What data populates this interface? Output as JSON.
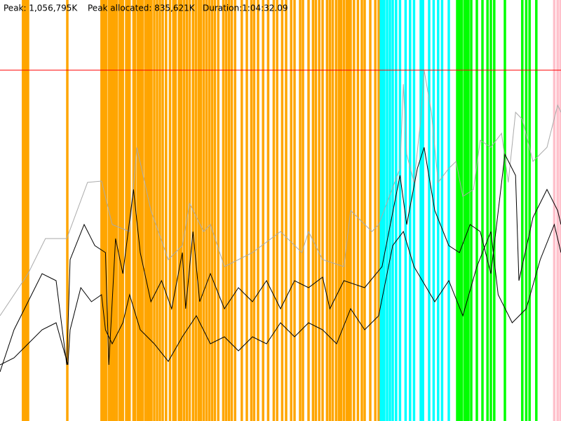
{
  "chart_data": {
    "type": "line",
    "labels": [
      "Peak: 1,056,795K",
      "Peak allocated: 835,621K",
      "Duration:1:04:32.09"
    ],
    "xlim": [
      0,
      100
    ],
    "ylim": [
      0,
      120
    ],
    "hline": 100,
    "hline_color": "#ff0000",
    "events": [
      {
        "color": "#ffa500",
        "x": [
          4.1,
          4.5,
          4.8,
          5,
          12,
          18.1,
          18.5,
          18.9,
          19.4,
          19.8,
          20,
          20.4,
          20.8,
          21.3,
          21.5,
          21.9,
          22.5,
          22.9,
          23.1,
          23.8,
          24.1,
          24.6,
          25,
          25.4,
          25.9,
          26.3,
          26.6,
          27,
          27.5,
          28,
          28.5,
          29,
          29.6,
          30.3,
          30.9,
          31.3,
          31.9,
          32.3,
          32.8,
          33.3,
          33.8,
          34.4,
          34.9,
          35.4,
          35.8,
          36.3,
          36.8,
          37.3,
          37.8,
          38.3,
          38.9,
          39.8,
          40.3,
          40.8,
          41.3,
          41.9,
          43.1,
          44,
          44.8,
          45.3,
          46,
          46.9,
          47.8,
          48.8,
          49.4,
          50.3,
          51,
          51.9,
          52.5,
          53.5,
          54,
          55,
          55.8,
          56.3,
          56.9,
          57.5,
          58.3,
          58.8,
          59.3,
          59.9,
          60.4,
          60.8,
          61.3,
          61.8,
          62.1,
          62.5,
          63.1,
          63.8,
          64.5,
          65,
          66,
          66.9,
          67.5
        ]
      },
      {
        "color": "#00ffff",
        "x": [
          67.9,
          68.3,
          68.5,
          69,
          69.5,
          70,
          70.6,
          71.3,
          72.3,
          73.1,
          73.8,
          75,
          75.4,
          76.5,
          77.3,
          78.1,
          78.8,
          80
        ]
      },
      {
        "color": "#00ff00",
        "x": [
          81.5,
          81.9,
          82.3,
          82.8,
          83.1,
          83.5,
          84,
          85,
          86,
          86.9,
          87.5,
          88.1,
          90,
          93.1,
          93.8,
          94.4,
          95.6
        ]
      },
      {
        "color": "#ffc0cb",
        "x": [
          98.8,
          99.4,
          99.9
        ]
      }
    ],
    "series": [
      {
        "color": "#aaaaaa",
        "x": [
          0,
          5,
          8.1,
          11.9,
          15.6,
          18.1,
          20,
          23.1,
          24.4,
          26.9,
          30,
          32.5,
          33.8,
          36.3,
          37.5,
          40,
          45,
          50,
          53.8,
          55,
          57.5,
          61.3,
          62.5,
          66.3,
          67.5,
          71.3,
          71.9,
          72.5,
          73.8,
          75,
          75.6,
          76.9,
          78.1,
          80,
          81.3,
          82.5,
          84.4,
          85.6,
          87.5,
          89.4,
          90.6,
          91.9,
          93.1,
          95,
          97.5,
          99.4,
          100
        ],
        "values": [
          30,
          42,
          52,
          52,
          68,
          68.4,
          56,
          54,
          78,
          60,
          46,
          50,
          62,
          54,
          56,
          44,
          48,
          54,
          48,
          54,
          46,
          44,
          60,
          54,
          56,
          72,
          96,
          76,
          68,
          86,
          100,
          88,
          68,
          72,
          74,
          64,
          66,
          80,
          78,
          82,
          68,
          88,
          86,
          74,
          78,
          90,
          88
        ]
      },
      {
        "color": "#000000",
        "x": [
          0,
          2.5,
          5,
          7.5,
          10,
          11.9,
          12.5,
          15,
          16.9,
          18.8,
          19.4,
          20.6,
          21.9,
          23.8,
          25,
          26.9,
          28.8,
          30.6,
          32.5,
          33.1,
          34.4,
          35.6,
          37.5,
          40,
          42.5,
          45,
          47.5,
          50,
          52.5,
          55,
          57.5,
          58.8,
          61.3,
          65,
          68.1,
          71.3,
          72.5,
          74.4,
          75.6,
          77.5,
          80,
          81.9,
          83.8,
          85.6,
          87.5,
          90,
          91.9,
          92.5,
          95,
          97.5,
          99.4,
          100
        ],
        "values": [
          14,
          26,
          34,
          42,
          40,
          16,
          46,
          56,
          50,
          48,
          16,
          52,
          42,
          66,
          48,
          34,
          40,
          32,
          48,
          32,
          54,
          34,
          42,
          32,
          38,
          34,
          40,
          32,
          40,
          38,
          41,
          32,
          40,
          38,
          44,
          70,
          56,
          72,
          78,
          60,
          50,
          48,
          56,
          54,
          42,
          76,
          70,
          40,
          58,
          66,
          60,
          56
        ]
      },
      {
        "color": "#000000",
        "x": [
          0,
          2.5,
          5,
          7.5,
          10,
          12.1,
          12.5,
          14.4,
          16.3,
          18.1,
          18.8,
          20,
          21.9,
          23.1,
          25,
          27.5,
          30,
          32.5,
          35,
          37.5,
          40,
          42.5,
          45,
          47.5,
          50,
          52.5,
          55,
          57.5,
          60,
          62.5,
          65,
          67.5,
          70,
          71.9,
          73.8,
          77.5,
          80,
          82.5,
          85,
          87.5,
          88.8,
          91.3,
          93.8,
          96.3,
          98.8,
          100
        ],
        "values": [
          16,
          18,
          22,
          26,
          28,
          16,
          26,
          38,
          34,
          36,
          26,
          22,
          28,
          36,
          26,
          22,
          17,
          24,
          30,
          22,
          24,
          20,
          24,
          22,
          28,
          24,
          28,
          26,
          22,
          32,
          26,
          30,
          50,
          54,
          44,
          34,
          40,
          30,
          44,
          54,
          36,
          28,
          32,
          46,
          56,
          48
        ]
      }
    ]
  }
}
